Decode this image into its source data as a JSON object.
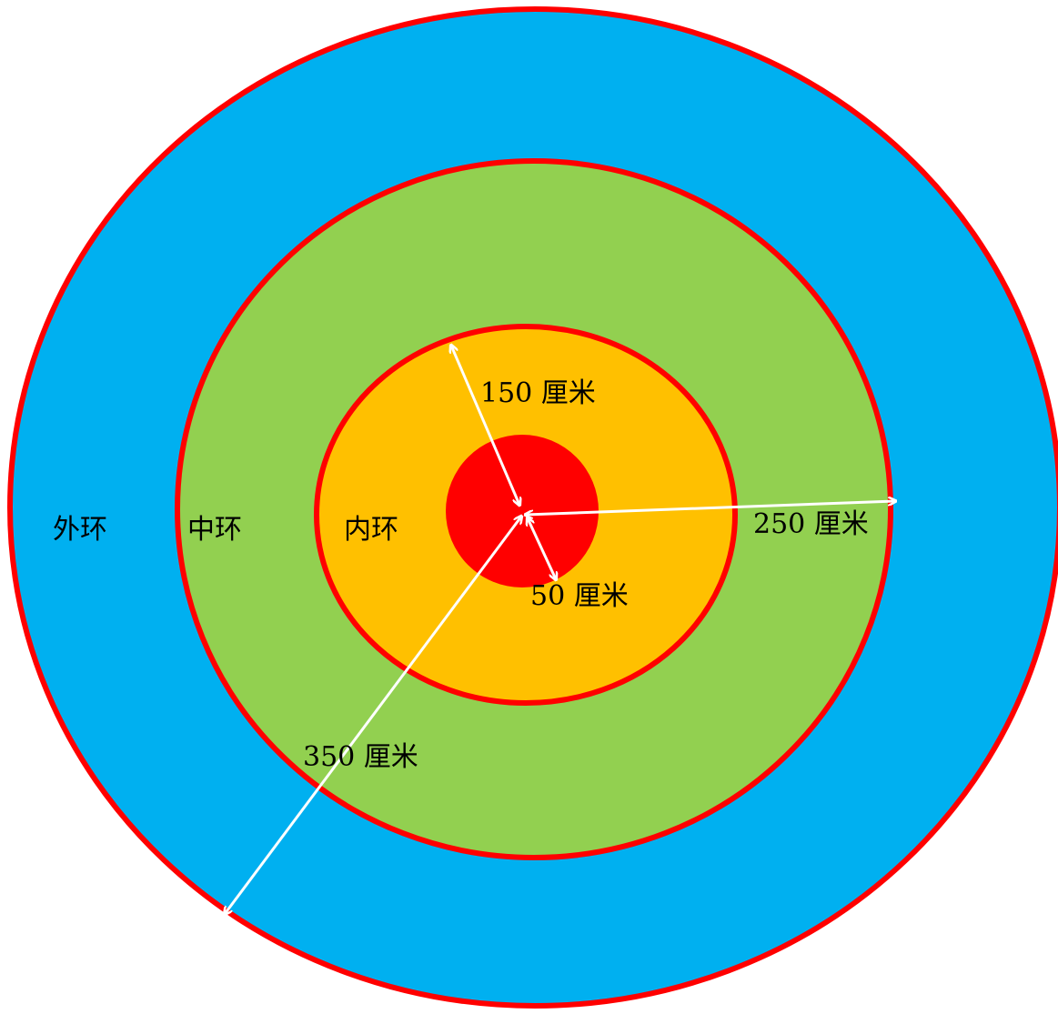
{
  "colors": {
    "outer_ring": "#00B0F0",
    "middle_ring": "#92D050",
    "inner_ring": "#FFC000",
    "bullseye": "#FF0000",
    "ring_border": "#FF0000",
    "arrow": "#FFFFFF",
    "text": "#000000"
  },
  "rings": {
    "outer": {
      "label": "外环"
    },
    "middle": {
      "label": "中环"
    },
    "inner": {
      "label": "内环"
    }
  },
  "radii": {
    "r50": "50 厘米",
    "r150": "150 厘米",
    "r250": "250 厘米",
    "r350": "350 厘米"
  }
}
